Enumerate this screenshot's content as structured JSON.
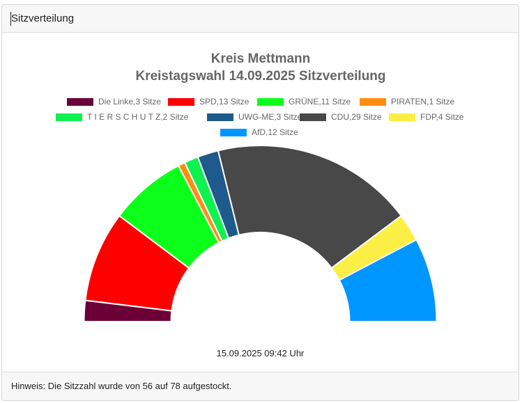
{
  "header": {
    "title": "Sitzverteilung"
  },
  "footer": {
    "note": "Hinweis: Die Sitzzahl wurde von 56 auf 78 aufgestockt."
  },
  "timestamp": "15.09.2025 09:42 Uhr",
  "chart_data": {
    "type": "pie",
    "variant": "semicircle-doughnut",
    "title": [
      "Kreis Mettmann",
      "Kreistagswahl 14.09.2025 Sitzverteilung"
    ],
    "legend_position": "top",
    "total": 78,
    "series": [
      {
        "name": "Die Linke",
        "label": "Die Linke,3 Sitze",
        "value": 3,
        "color": "#6b0036"
      },
      {
        "name": "SPD",
        "label": "SPD,13 Sitze",
        "value": 13,
        "color": "#ff0000"
      },
      {
        "name": "GRÜNE",
        "label": "GRÜNE,11 Sitze",
        "value": 11,
        "color": "#0cff1a"
      },
      {
        "name": "PIRATEN",
        "label": "PIRATEN,1 Sitze",
        "value": 1,
        "color": "#ff8c10"
      },
      {
        "name": "T I E R S C H U T Z",
        "label": "T I E R S C H U T Z,2 Sitze",
        "value": 2,
        "color": "#0ef150"
      },
      {
        "name": "UWG-ME",
        "label": "UWG-ME,3 Sitze",
        "value": 3,
        "color": "#1f5a8c"
      },
      {
        "name": "CDU",
        "label": "CDU,29 Sitze",
        "value": 29,
        "color": "#484848"
      },
      {
        "name": "FDP",
        "label": "FDP,4 Sitze",
        "value": 4,
        "color": "#fbef45"
      },
      {
        "name": "AfD",
        "label": "AfD,12 Sitze",
        "value": 12,
        "color": "#0096ff"
      }
    ]
  }
}
